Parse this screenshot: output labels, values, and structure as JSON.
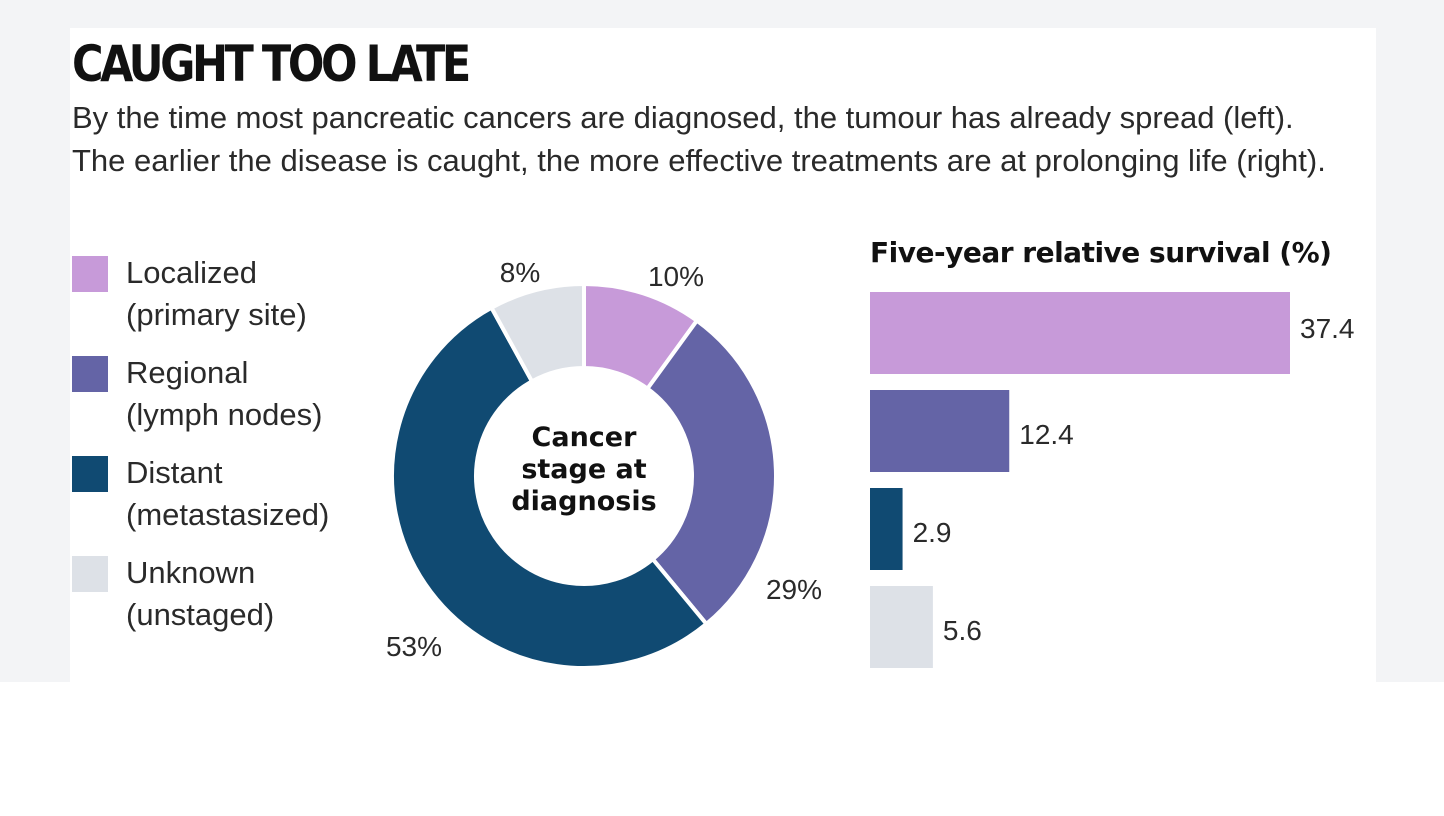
{
  "title": "CAUGHT TOO LATE",
  "subtitle": "By the time most pancreatic cancers are diagnosed, the tumour has already spread (left). The earlier the disease is caught, the more effective treatments are at prolonging life (right).",
  "chart_data": [
    {
      "type": "pie",
      "center_label": [
        "Cancer",
        "stage at",
        "diagnosis"
      ],
      "categories": [
        "Localized (primary site)",
        "Regional (lymph nodes)",
        "Distant (metastasized)",
        "Unknown (unstaged)"
      ],
      "values": [
        10,
        29,
        53,
        8
      ],
      "value_labels": [
        "10%",
        "29%",
        "53%",
        "8%"
      ],
      "colors": [
        "#c79ad9",
        "#6464a6",
        "#104a72",
        "#dde1e7"
      ],
      "legend": [
        {
          "line1": "Localized",
          "line2": "(primary site)",
          "color": "#c79ad9"
        },
        {
          "line1": "Regional",
          "line2": "(lymph nodes)",
          "color": "#6464a6"
        },
        {
          "line1": "Distant",
          "line2": "(metastasized)",
          "color": "#104a72"
        },
        {
          "line1": "Unknown",
          "line2": "(unstaged)",
          "color": "#dde1e7"
        }
      ],
      "legend_position": "left"
    },
    {
      "type": "bar",
      "orientation": "horizontal",
      "title": "Five-year relative survival (%)",
      "categories": [
        "Localized",
        "Regional",
        "Distant",
        "Unknown"
      ],
      "values": [
        37.4,
        12.4,
        2.9,
        5.6
      ],
      "value_labels": [
        "37.4",
        "12.4",
        "2.9",
        "5.6"
      ],
      "colors": [
        "#c79ad9",
        "#6464a6",
        "#104a72",
        "#dde1e7"
      ],
      "xlim": [
        0,
        37.4
      ]
    }
  ]
}
